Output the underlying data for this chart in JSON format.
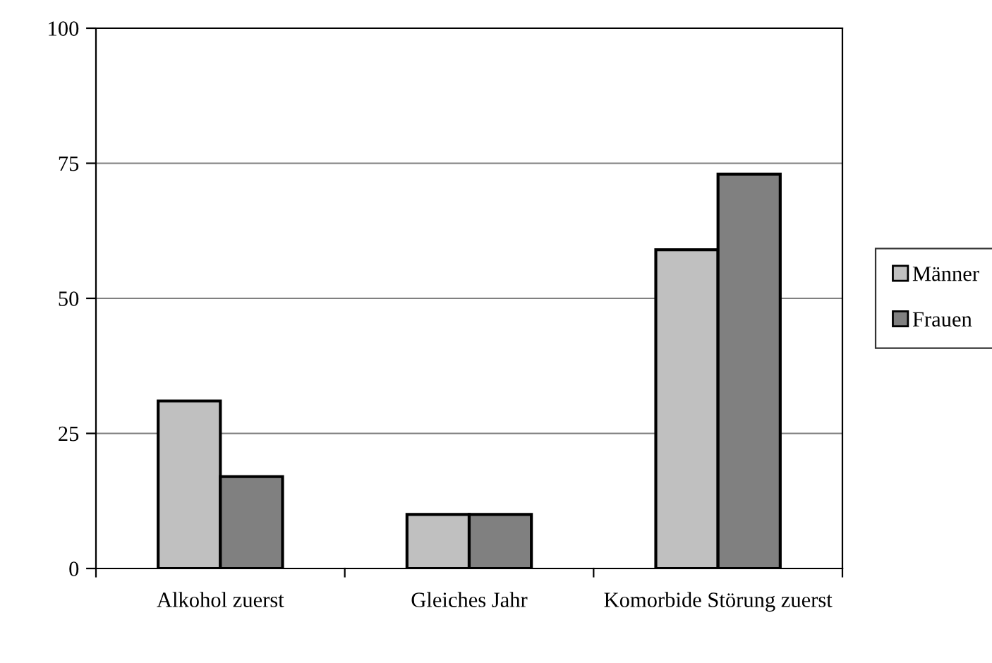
{
  "chart_data": {
    "type": "bar",
    "categories": [
      "Alkohol zuerst",
      "Gleiches Jahr",
      "Komorbide Störung zuerst"
    ],
    "series": [
      {
        "name": "Männer",
        "color": "#c0c0c0",
        "values": [
          31,
          10,
          59
        ]
      },
      {
        "name": "Frauen",
        "color": "#808080",
        "values": [
          17,
          10,
          73
        ]
      }
    ],
    "ylim": [
      0,
      100
    ],
    "yticks": [
      0,
      25,
      50,
      75,
      100
    ],
    "grid": "y",
    "legend": "right"
  }
}
